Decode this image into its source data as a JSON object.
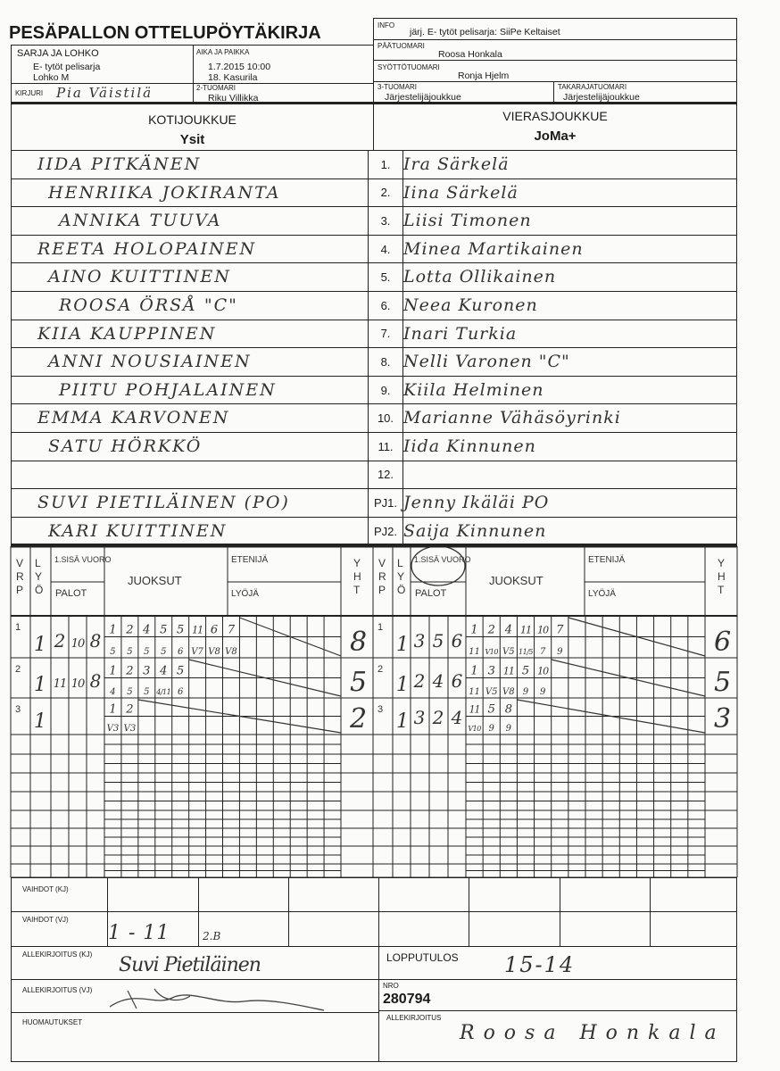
{
  "title": "PESÄPALLON OTTELUPÖYTÄKIRJA",
  "info": {
    "label": "INFO",
    "value": "järj. E- tytöt pelisarja: SiiPe Keltaiset"
  },
  "sarja": {
    "label": "SARJA JA LOHKO",
    "line1": "E- tytöt pelisarja",
    "line2": "Lohko M"
  },
  "aika": {
    "label": "AIKA JA PAIKKA",
    "line1": "1.7.2015 10:00",
    "line2": "18. Kasurila"
  },
  "paatuomari": {
    "label": "PÄÄTUOMARI",
    "value": "Roosa Honkala"
  },
  "syottotuomari": {
    "label": "SYÖTTÖTUOMARI",
    "value": "Ronja Hjelm"
  },
  "kirjuri": {
    "label": "KIRJURI",
    "value": "Pia Väistilä"
  },
  "tuomari2": {
    "label": "2-TUOMARI",
    "value": "Riku Villikka"
  },
  "tuomari3": {
    "label": "3-TUOMARI",
    "value": "Järjestelijäjoukkue"
  },
  "takaraja": {
    "label": "TAKARAJATUOMARI",
    "value": "Järjestelijäjoukkue"
  },
  "home": {
    "label": "KOTIJOUKKUE",
    "name": "Ysit"
  },
  "away": {
    "label": "VIERASJOUKKUE",
    "name": "JoMa+"
  },
  "roster": [
    {
      "no": "1.",
      "home": "IIDA PITKÄNEN",
      "away": "Ira Särkelä"
    },
    {
      "no": "2.",
      "home": "HENRIIKA JOKIRANTA",
      "away": "Iina Särkelä"
    },
    {
      "no": "3.",
      "home": "ANNIKA TUUVA",
      "away": "Liisi Timonen"
    },
    {
      "no": "4.",
      "home": "REETA HOLOPAINEN",
      "away": "Minea Martikainen"
    },
    {
      "no": "5.",
      "home": "AINO KUITTINEN",
      "away": "Lotta Ollikainen"
    },
    {
      "no": "6.",
      "home": "ROOSA ÖRSÅ \"C\"",
      "away": "Neea Kuronen"
    },
    {
      "no": "7.",
      "home": "KIIA KAUPPINEN",
      "away": "Inari Turkia"
    },
    {
      "no": "8.",
      "home": "ANNI NOUSIAINEN",
      "away": "Nelli Varonen \"C\""
    },
    {
      "no": "9.",
      "home": "PIITU POHJALAINEN",
      "away": "Kiila Helminen"
    },
    {
      "no": "10.",
      "home": "EMMA KARVONEN",
      "away": "Marianne Vähäsöyrinki"
    },
    {
      "no": "11.",
      "home": "SATU HÖRKKÖ",
      "away": "Iida Kinnunen"
    },
    {
      "no": "12.",
      "home": "",
      "away": ""
    },
    {
      "no": "PJ1.",
      "home": "SUVI PIETILÄINEN (PO)",
      "away": "Jenny Ikäläi PO"
    },
    {
      "no": "PJ2.",
      "home": "KARI KUITTINEN",
      "away": "Saija Kinnunen"
    }
  ],
  "score_headers": {
    "vrp": [
      "V",
      "R",
      "P"
    ],
    "lyo": [
      "L",
      "Y",
      "Ö"
    ],
    "sisa": "1.SISÄ VUORO",
    "palot": "PALOT",
    "juoksut": "JUOKSUT",
    "etenija": "ETENIJÄ",
    "lyoja": "LYÖJÄ",
    "yht": [
      "Y",
      "H",
      "T"
    ]
  },
  "home_innings": [
    {
      "vrp": "1",
      "lyo": "1",
      "palot": [
        "2",
        "10",
        "8"
      ],
      "top": [
        "1",
        "2",
        "4",
        "5",
        "5",
        "11",
        "6",
        "7"
      ],
      "bottom": [
        "5",
        "5",
        "5",
        "5",
        "6",
        "V7",
        "V8",
        "V8"
      ],
      "yht": "8"
    },
    {
      "vrp": "2",
      "lyo": "1",
      "palot": [
        "11",
        "10",
        "8"
      ],
      "top": [
        "1",
        "2",
        "3",
        "4",
        "5"
      ],
      "bottom": [
        "4",
        "5",
        "5",
        "4/11",
        "6"
      ],
      "yht": "5"
    },
    {
      "vrp": "3",
      "lyo": "1",
      "palot": [],
      "top": [
        "1",
        "2"
      ],
      "bottom": [
        "V3",
        "V3"
      ],
      "yht": "2"
    }
  ],
  "away_innings": [
    {
      "vrp": "1",
      "lyo": "1",
      "palot": [
        "3",
        "5",
        "6"
      ],
      "top": [
        "1",
        "2",
        "4",
        "11",
        "10",
        "7"
      ],
      "bottom": [
        "11",
        "V10",
        "V5",
        "11/5",
        "7",
        "9"
      ],
      "yht": "6"
    },
    {
      "vrp": "2",
      "lyo": "1",
      "palot": [
        "2",
        "4",
        "6"
      ],
      "top": [
        "1",
        "3",
        "11",
        "5",
        "10"
      ],
      "bottom": [
        "11",
        "V5",
        "V8",
        "9",
        "9"
      ],
      "yht": "5"
    },
    {
      "vrp": "3",
      "lyo": "1",
      "palot": [
        "3",
        "2",
        "4"
      ],
      "top": [
        "11",
        "5",
        "8"
      ],
      "bottom": [
        "V10",
        "9",
        "9"
      ],
      "yht": "3"
    }
  ],
  "vaihdot_kj": {
    "label": "VAIHDOT (KJ)"
  },
  "vaihdot_vj": {
    "label": "VAIHDOT (VJ)",
    "value": "1 - 11",
    "note": "2.B"
  },
  "allekirjoitus_kj": {
    "label": "ALLEKIRJOITUS (KJ)",
    "value": "Suvi Pietiläinen"
  },
  "allekirjoitus_vj": {
    "label": "ALLEKIRJOITUS (VJ)"
  },
  "huomautukset": {
    "label": "HUOMAUTUKSET"
  },
  "lopputulos": {
    "label": "LOPPUTULOS",
    "value": "15-14"
  },
  "nro": {
    "label": "NRO",
    "value": "280794"
  },
  "allekirjoitus": {
    "label": "ALLEKIRJOITUS",
    "value": "Roosa Honkala"
  }
}
